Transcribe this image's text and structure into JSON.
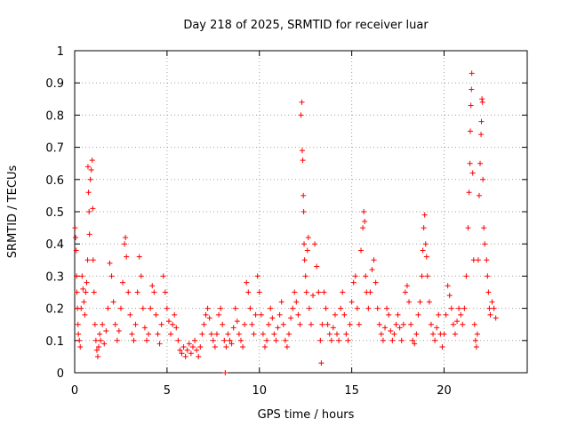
{
  "chart_data": {
    "type": "scatter",
    "title": "Day 218 of 2025, SRMTID for receiver luar",
    "xlabel": "GPS time / hours",
    "ylabel": "SRMTID / TECUs",
    "xlim": [
      0,
      24.5
    ],
    "ylim": [
      0,
      1
    ],
    "x_ticks": [
      0,
      5,
      10,
      15,
      20
    ],
    "x_tick_labels": [
      "0",
      "5",
      "10",
      "15",
      "20"
    ],
    "y_ticks": [
      0,
      0.1,
      0.2,
      0.3,
      0.4,
      0.5,
      0.6,
      0.7,
      0.8,
      0.9,
      1
    ],
    "y_tick_labels": [
      "0",
      "0.1",
      "0.2",
      "0.3",
      "0.4",
      "0.5",
      "0.6",
      "0.7",
      "0.8",
      "0.9",
      "1"
    ],
    "grid": true,
    "marker": "+",
    "color": "#ff0000",
    "series": [
      {
        "name": "SRMTID",
        "points": [
          [
            0.02,
            0.45
          ],
          [
            0.05,
            0.42
          ],
          [
            0.08,
            0.38
          ],
          [
            0.1,
            0.3
          ],
          [
            0.12,
            0.25
          ],
          [
            0.15,
            0.2
          ],
          [
            0.18,
            0.15
          ],
          [
            0.2,
            0.12
          ],
          [
            0.25,
            0.1
          ],
          [
            0.3,
            0.08
          ],
          [
            0.35,
            0.2
          ],
          [
            0.4,
            0.3
          ],
          [
            0.45,
            0.26
          ],
          [
            0.5,
            0.22
          ],
          [
            0.55,
            0.18
          ],
          [
            0.6,
            0.25
          ],
          [
            0.65,
            0.28
          ],
          [
            0.7,
            0.35
          ],
          [
            0.72,
            0.64
          ],
          [
            0.75,
            0.56
          ],
          [
            0.78,
            0.5
          ],
          [
            0.8,
            0.43
          ],
          [
            0.85,
            0.6
          ],
          [
            0.9,
            0.63
          ],
          [
            0.95,
            0.66
          ],
          [
            0.98,
            0.51
          ],
          [
            1.0,
            0.35
          ],
          [
            1.05,
            0.25
          ],
          [
            1.1,
            0.15
          ],
          [
            1.15,
            0.1
          ],
          [
            1.2,
            0.07
          ],
          [
            1.25,
            0.05
          ],
          [
            1.3,
            0.08
          ],
          [
            1.35,
            0.12
          ],
          [
            1.4,
            0.1
          ],
          [
            1.5,
            0.15
          ],
          [
            1.6,
            0.09
          ],
          [
            1.7,
            0.13
          ],
          [
            1.8,
            0.2
          ],
          [
            1.9,
            0.34
          ],
          [
            2.0,
            0.3
          ],
          [
            2.1,
            0.22
          ],
          [
            2.2,
            0.15
          ],
          [
            2.3,
            0.1
          ],
          [
            2.4,
            0.13
          ],
          [
            2.5,
            0.2
          ],
          [
            2.6,
            0.28
          ],
          [
            2.7,
            0.4
          ],
          [
            2.75,
            0.42
          ],
          [
            2.8,
            0.36
          ],
          [
            2.9,
            0.25
          ],
          [
            3.0,
            0.18
          ],
          [
            3.1,
            0.12
          ],
          [
            3.2,
            0.1
          ],
          [
            3.3,
            0.15
          ],
          [
            3.4,
            0.25
          ],
          [
            3.5,
            0.36
          ],
          [
            3.6,
            0.3
          ],
          [
            3.7,
            0.2
          ],
          [
            3.8,
            0.14
          ],
          [
            3.9,
            0.1
          ],
          [
            4.0,
            0.12
          ],
          [
            4.1,
            0.2
          ],
          [
            4.2,
            0.27
          ],
          [
            4.3,
            0.25
          ],
          [
            4.4,
            0.18
          ],
          [
            4.5,
            0.12
          ],
          [
            4.6,
            0.09
          ],
          [
            4.7,
            0.15
          ],
          [
            4.8,
            0.3
          ],
          [
            4.9,
            0.25
          ],
          [
            5.0,
            0.2
          ],
          [
            5.1,
            0.16
          ],
          [
            5.2,
            0.12
          ],
          [
            5.3,
            0.15
          ],
          [
            5.4,
            0.18
          ],
          [
            5.5,
            0.14
          ],
          [
            5.6,
            0.1
          ],
          [
            5.7,
            0.07
          ],
          [
            5.8,
            0.06
          ],
          [
            5.9,
            0.08
          ],
          [
            6.0,
            0.05
          ],
          [
            6.1,
            0.07
          ],
          [
            6.2,
            0.09
          ],
          [
            6.3,
            0.06
          ],
          [
            6.4,
            0.08
          ],
          [
            6.5,
            0.1
          ],
          [
            6.6,
            0.07
          ],
          [
            6.7,
            0.05
          ],
          [
            6.8,
            0.08
          ],
          [
            6.9,
            0.12
          ],
          [
            7.0,
            0.15
          ],
          [
            7.1,
            0.18
          ],
          [
            7.2,
            0.2
          ],
          [
            7.3,
            0.17
          ],
          [
            7.4,
            0.12
          ],
          [
            7.5,
            0.1
          ],
          [
            7.6,
            0.08
          ],
          [
            7.7,
            0.12
          ],
          [
            7.8,
            0.18
          ],
          [
            7.9,
            0.2
          ],
          [
            8.0,
            0.15
          ],
          [
            8.1,
            0.1
          ],
          [
            8.15,
            0.0
          ],
          [
            8.2,
            0.08
          ],
          [
            8.3,
            0.12
          ],
          [
            8.4,
            0.1
          ],
          [
            8.5,
            0.09
          ],
          [
            8.6,
            0.14
          ],
          [
            8.7,
            0.2
          ],
          [
            8.8,
            0.16
          ],
          [
            8.9,
            0.12
          ],
          [
            9.0,
            0.1
          ],
          [
            9.1,
            0.08
          ],
          [
            9.2,
            0.15
          ],
          [
            9.3,
            0.28
          ],
          [
            9.4,
            0.25
          ],
          [
            9.5,
            0.2
          ],
          [
            9.6,
            0.15
          ],
          [
            9.7,
            0.12
          ],
          [
            9.8,
            0.18
          ],
          [
            9.9,
            0.3
          ],
          [
            10.0,
            0.25
          ],
          [
            10.1,
            0.18
          ],
          [
            10.2,
            0.12
          ],
          [
            10.3,
            0.08
          ],
          [
            10.4,
            0.1
          ],
          [
            10.5,
            0.15
          ],
          [
            10.6,
            0.2
          ],
          [
            10.7,
            0.17
          ],
          [
            10.8,
            0.12
          ],
          [
            10.9,
            0.1
          ],
          [
            11.0,
            0.14
          ],
          [
            11.1,
            0.18
          ],
          [
            11.2,
            0.22
          ],
          [
            11.3,
            0.15
          ],
          [
            11.4,
            0.1
          ],
          [
            11.5,
            0.08
          ],
          [
            11.6,
            0.12
          ],
          [
            11.7,
            0.17
          ],
          [
            11.8,
            0.2
          ],
          [
            11.9,
            0.25
          ],
          [
            12.0,
            0.22
          ],
          [
            12.1,
            0.18
          ],
          [
            12.2,
            0.15
          ],
          [
            12.25,
            0.8
          ],
          [
            12.3,
            0.84
          ],
          [
            12.32,
            0.69
          ],
          [
            12.35,
            0.66
          ],
          [
            12.38,
            0.55
          ],
          [
            12.4,
            0.5
          ],
          [
            12.42,
            0.4
          ],
          [
            12.45,
            0.35
          ],
          [
            12.5,
            0.3
          ],
          [
            12.55,
            0.25
          ],
          [
            12.6,
            0.38
          ],
          [
            12.65,
            0.42
          ],
          [
            12.7,
            0.2
          ],
          [
            12.8,
            0.15
          ],
          [
            12.9,
            0.24
          ],
          [
            13.0,
            0.4
          ],
          [
            13.1,
            0.33
          ],
          [
            13.2,
            0.25
          ],
          [
            13.3,
            0.1
          ],
          [
            13.35,
            0.03
          ],
          [
            13.4,
            0.15
          ],
          [
            13.5,
            0.25
          ],
          [
            13.6,
            0.2
          ],
          [
            13.7,
            0.15
          ],
          [
            13.8,
            0.12
          ],
          [
            13.9,
            0.1
          ],
          [
            14.0,
            0.14
          ],
          [
            14.1,
            0.18
          ],
          [
            14.2,
            0.12
          ],
          [
            14.3,
            0.1
          ],
          [
            14.4,
            0.2
          ],
          [
            14.5,
            0.25
          ],
          [
            14.6,
            0.18
          ],
          [
            14.7,
            0.12
          ],
          [
            14.8,
            0.1
          ],
          [
            14.9,
            0.15
          ],
          [
            15.0,
            0.22
          ],
          [
            15.1,
            0.28
          ],
          [
            15.2,
            0.3
          ],
          [
            15.3,
            0.2
          ],
          [
            15.4,
            0.15
          ],
          [
            15.5,
            0.38
          ],
          [
            15.6,
            0.45
          ],
          [
            15.65,
            0.5
          ],
          [
            15.7,
            0.47
          ],
          [
            15.75,
            0.3
          ],
          [
            15.8,
            0.25
          ],
          [
            15.9,
            0.2
          ],
          [
            16.0,
            0.25
          ],
          [
            16.1,
            0.32
          ],
          [
            16.2,
            0.35
          ],
          [
            16.3,
            0.28
          ],
          [
            16.4,
            0.2
          ],
          [
            16.5,
            0.15
          ],
          [
            16.6,
            0.12
          ],
          [
            16.7,
            0.1
          ],
          [
            16.8,
            0.14
          ],
          [
            16.9,
            0.2
          ],
          [
            17.0,
            0.18
          ],
          [
            17.1,
            0.13
          ],
          [
            17.2,
            0.1
          ],
          [
            17.3,
            0.12
          ],
          [
            17.4,
            0.15
          ],
          [
            17.5,
            0.18
          ],
          [
            17.6,
            0.14
          ],
          [
            17.7,
            0.1
          ],
          [
            17.8,
            0.15
          ],
          [
            17.9,
            0.25
          ],
          [
            18.0,
            0.27
          ],
          [
            18.1,
            0.22
          ],
          [
            18.2,
            0.15
          ],
          [
            18.3,
            0.1
          ],
          [
            18.4,
            0.09
          ],
          [
            18.5,
            0.12
          ],
          [
            18.6,
            0.18
          ],
          [
            18.7,
            0.22
          ],
          [
            18.8,
            0.3
          ],
          [
            18.85,
            0.38
          ],
          [
            18.9,
            0.45
          ],
          [
            18.95,
            0.49
          ],
          [
            19.0,
            0.4
          ],
          [
            19.05,
            0.36
          ],
          [
            19.1,
            0.3
          ],
          [
            19.2,
            0.22
          ],
          [
            19.3,
            0.15
          ],
          [
            19.4,
            0.12
          ],
          [
            19.5,
            0.1
          ],
          [
            19.6,
            0.14
          ],
          [
            19.7,
            0.18
          ],
          [
            19.8,
            0.12
          ],
          [
            19.9,
            0.08
          ],
          [
            20.0,
            0.12
          ],
          [
            20.1,
            0.18
          ],
          [
            20.2,
            0.27
          ],
          [
            20.3,
            0.24
          ],
          [
            20.4,
            0.2
          ],
          [
            20.5,
            0.15
          ],
          [
            20.6,
            0.12
          ],
          [
            20.7,
            0.16
          ],
          [
            20.8,
            0.2
          ],
          [
            20.9,
            0.18
          ],
          [
            21.0,
            0.15
          ],
          [
            21.1,
            0.2
          ],
          [
            21.2,
            0.3
          ],
          [
            21.3,
            0.45
          ],
          [
            21.35,
            0.56
          ],
          [
            21.4,
            0.65
          ],
          [
            21.42,
            0.75
          ],
          [
            21.45,
            0.83
          ],
          [
            21.48,
            0.88
          ],
          [
            21.5,
            0.93
          ],
          [
            21.55,
            0.62
          ],
          [
            21.6,
            0.35
          ],
          [
            21.65,
            0.15
          ],
          [
            21.7,
            0.1
          ],
          [
            21.75,
            0.08
          ],
          [
            21.8,
            0.12
          ],
          [
            21.85,
            0.35
          ],
          [
            21.9,
            0.55
          ],
          [
            21.95,
            0.65
          ],
          [
            22.0,
            0.74
          ],
          [
            22.02,
            0.78
          ],
          [
            22.05,
            0.85
          ],
          [
            22.08,
            0.84
          ],
          [
            22.1,
            0.6
          ],
          [
            22.15,
            0.45
          ],
          [
            22.2,
            0.4
          ],
          [
            22.3,
            0.35
          ],
          [
            22.35,
            0.3
          ],
          [
            22.4,
            0.25
          ],
          [
            22.45,
            0.2
          ],
          [
            22.5,
            0.18
          ],
          [
            22.6,
            0.22
          ],
          [
            22.7,
            0.2
          ],
          [
            22.8,
            0.17
          ]
        ]
      }
    ]
  }
}
